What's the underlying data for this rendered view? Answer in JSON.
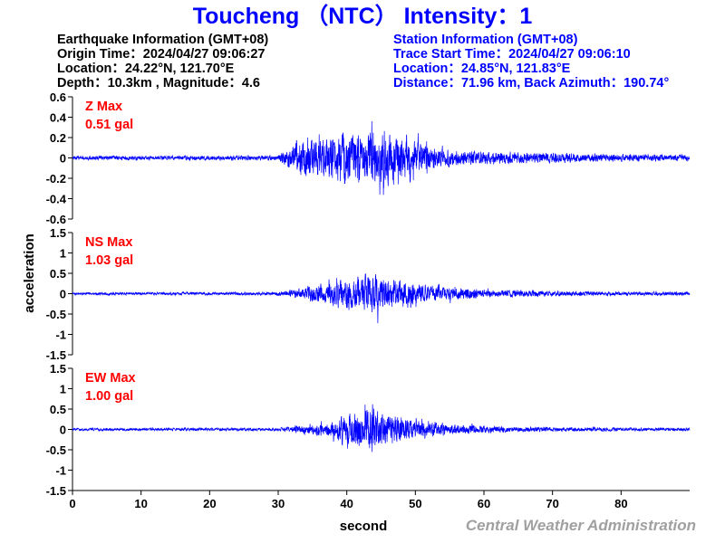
{
  "title": "Toucheng （NTC） Intensity：1",
  "earthquake_info": [
    "Earthquake Information  (GMT+08)",
    "Origin Time：2024/04/27 09:06:27",
    "Location：24.22°N, 121.70°E",
    "Depth：10.3km , Magnitude：4.6"
  ],
  "station_info": [
    "Station Information  (GMT+08)",
    "Trace Start Time：2024/04/27 09:06:10",
    "Location：24.85°N, 121.83°E",
    "Distance：71.96 km, Back Azimuth：190.74°"
  ],
  "credit": "Central Weather Administration",
  "colors": {
    "trace": "#0000ff",
    "title": "#0000ff",
    "max_label": "#ff0000",
    "credit": "#a0a0a0"
  },
  "chart_data": {
    "type": "line",
    "xlabel": "second",
    "ylabel": "acceleration",
    "xlim": [
      0,
      90
    ],
    "x_ticks": [
      0,
      10,
      20,
      30,
      40,
      50,
      60,
      70,
      80
    ],
    "x_tick_labels": [
      "0",
      "10",
      "20",
      "30",
      "40",
      "50",
      "60",
      "70",
      "80"
    ],
    "grid": false,
    "series": [
      {
        "name": "Z Max",
        "max_label": "Z Max",
        "max_value": "0.51 gal",
        "ylim": [
          -0.6,
          0.6
        ],
        "y_ticks": [
          -0.6,
          -0.4,
          -0.2,
          0,
          0.2,
          0.4,
          0.6
        ],
        "y_tick_labels": [
          "-0.6",
          "-0.4",
          "-0.2",
          "0",
          "0.2",
          "0.4",
          "0.6"
        ],
        "envelope": {
          "t": [
            0,
            30,
            31,
            33,
            36,
            40,
            43,
            46,
            48,
            52,
            56,
            60,
            65,
            70,
            80,
            90
          ],
          "amp": [
            0.025,
            0.03,
            0.1,
            0.2,
            0.22,
            0.28,
            0.3,
            0.3,
            0.26,
            0.15,
            0.1,
            0.08,
            0.07,
            0.06,
            0.045,
            0.04
          ]
        }
      },
      {
        "name": "NS Max",
        "max_label": "NS Max",
        "max_value": "1.03 gal",
        "ylim": [
          -1.5,
          1.5
        ],
        "y_ticks": [
          -1.5,
          -1,
          -0.5,
          0,
          0.5,
          1,
          1.5
        ],
        "y_tick_labels": [
          "-1.5",
          "-1",
          "-0.5",
          "0",
          "0.5",
          "1",
          "1.5"
        ],
        "envelope": {
          "t": [
            0,
            30,
            33,
            37,
            40,
            43,
            45,
            47,
            50,
            55,
            60,
            70,
            80,
            90
          ],
          "amp": [
            0.04,
            0.05,
            0.15,
            0.3,
            0.45,
            0.55,
            0.55,
            0.45,
            0.3,
            0.18,
            0.12,
            0.08,
            0.06,
            0.06
          ]
        }
      },
      {
        "name": "EW Max",
        "max_label": "EW Max",
        "max_value": "1.00 gal",
        "ylim": [
          -1.5,
          1.5
        ],
        "y_ticks": [
          -1.5,
          -1,
          -0.5,
          0,
          0.5,
          1,
          1.5
        ],
        "y_tick_labels": [
          "-1.5",
          "-1",
          "-0.5",
          "0",
          "0.5",
          "1",
          "1.5"
        ],
        "envelope": {
          "t": [
            0,
            30,
            33,
            37,
            40,
            42,
            44,
            46,
            49,
            53,
            58,
            65,
            75,
            90
          ],
          "amp": [
            0.04,
            0.05,
            0.12,
            0.2,
            0.45,
            0.6,
            0.55,
            0.45,
            0.3,
            0.2,
            0.12,
            0.08,
            0.06,
            0.05
          ]
        }
      }
    ]
  }
}
